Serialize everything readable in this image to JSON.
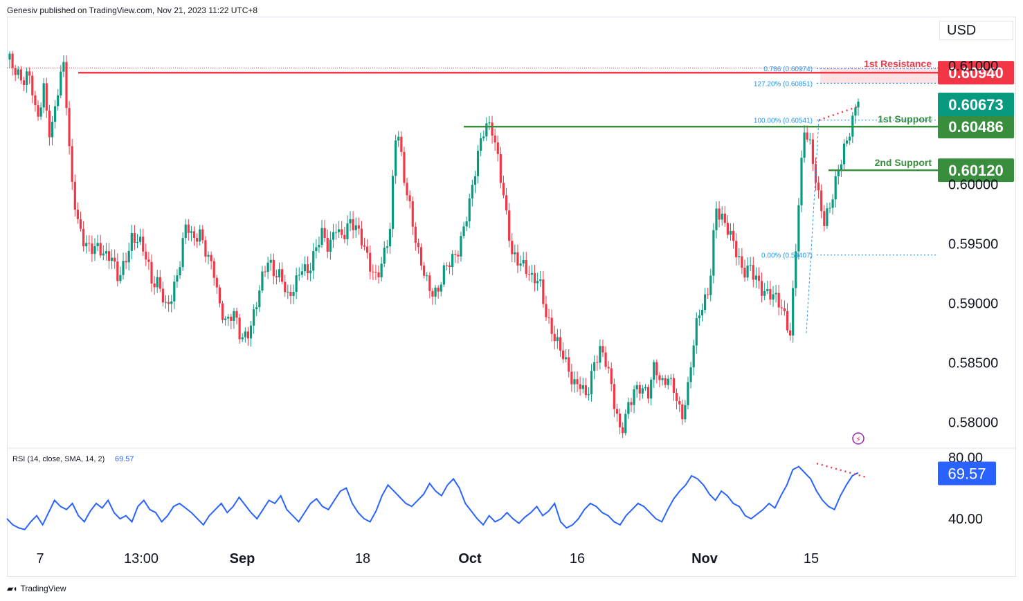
{
  "header": {
    "publisher": "Genesiv published on TradingView.com, Nov 21, 2023 11:22 UTC+8"
  },
  "footer": {
    "logo_text": "TradingView"
  },
  "currency": "USD",
  "colors": {
    "up": "#089981",
    "down": "#f23645",
    "resistance": "#f23645",
    "support": "#388e3c",
    "rsi": "#2962ff",
    "fib": "#2196f3"
  },
  "chart_data": [
    {
      "type": "candlestick",
      "price_axis": {
        "ticks": [
          "0.61000",
          "0.60000",
          "0.59500",
          "0.59000",
          "0.58500",
          "0.58000"
        ],
        "range": [
          0.578,
          0.614
        ]
      },
      "time_axis": {
        "ticks": [
          {
            "label": "7",
            "bold": false
          },
          {
            "label": "13:00",
            "bold": false
          },
          {
            "label": "Sep",
            "bold": true
          },
          {
            "label": "18",
            "bold": false
          },
          {
            "label": "Oct",
            "bold": true
          },
          {
            "label": "16",
            "bold": false
          },
          {
            "label": "Nov",
            "bold": true
          },
          {
            "label": "15",
            "bold": false
          }
        ]
      },
      "close_path": [
        0.6105,
        0.6085,
        0.6078,
        0.6092,
        0.606,
        0.609,
        0.604,
        0.607,
        0.6094,
        0.6005,
        0.5975,
        0.596,
        0.595,
        0.5942,
        0.593,
        0.5935,
        0.5925,
        0.5945,
        0.596,
        0.595,
        0.5932,
        0.591,
        0.592,
        0.5905,
        0.5915,
        0.593,
        0.596,
        0.5945,
        0.596,
        0.595,
        0.5938,
        0.5895,
        0.5875,
        0.5885,
        0.587,
        0.588,
        0.59,
        0.592,
        0.593,
        0.5915,
        0.592,
        0.591,
        0.5925,
        0.5935,
        0.592,
        0.5935,
        0.5955,
        0.595,
        0.5975,
        0.596,
        0.5965,
        0.5955,
        0.5945,
        0.5935,
        0.593,
        0.5945,
        0.596,
        0.6045,
        0.6,
        0.598,
        0.5955,
        0.5935,
        0.591,
        0.59,
        0.592,
        0.5935,
        0.595,
        0.5975,
        0.5995,
        0.602,
        0.604,
        0.6045,
        0.6025,
        0.599,
        0.5945,
        0.593,
        0.592,
        0.5915,
        0.5925,
        0.59,
        0.588,
        0.586,
        0.584,
        0.5825,
        0.5835,
        0.583,
        0.5855,
        0.586,
        0.584,
        0.581,
        0.579,
        0.582,
        0.5835,
        0.583,
        0.5815,
        0.584,
        0.583,
        0.5845,
        0.5835,
        0.5805,
        0.5825,
        0.587,
        0.5895,
        0.5915,
        0.599,
        0.5975,
        0.5955,
        0.5935,
        0.592,
        0.5935,
        0.593,
        0.5915,
        0.5905,
        0.5895,
        0.5885,
        0.5875,
        0.5975,
        0.6055,
        0.603,
        0.5985,
        0.596,
        0.5985,
        0.602,
        0.604,
        0.605,
        0.6067
      ],
      "levels": [
        {
          "name": "1st Resistance",
          "label": "1st Resistance",
          "value": "0.60940",
          "kind": "resistance"
        },
        {
          "name": "1st Support",
          "label": "1st Support",
          "value": "0.60486",
          "kind": "support"
        },
        {
          "name": "2nd Support",
          "label": "2nd Support",
          "value": "0.60120",
          "kind": "support"
        }
      ],
      "last_price": "0.60673",
      "fibonacci": [
        {
          "label": "0.786 (0.60974)"
        },
        {
          "label": "127.20% (0.60851)"
        },
        {
          "label": "100.00% (0.60541)"
        },
        {
          "label": "0.00% (0.59407)"
        }
      ]
    },
    {
      "type": "line",
      "title": "RSI (14, close, SMA, 14, 2)",
      "current_value": "69.57",
      "ticks": [
        "80.00",
        "40.00"
      ],
      "range": [
        22,
        86
      ],
      "series": [
        {
          "values": [
            40,
            36,
            34,
            33,
            38,
            42,
            36,
            44,
            52,
            48,
            46,
            50,
            42,
            38,
            45,
            50,
            47,
            52,
            44,
            40,
            42,
            38,
            48,
            52,
            46,
            44,
            38,
            42,
            48,
            50,
            47,
            44,
            40,
            36,
            42,
            46,
            50,
            44,
            48,
            54,
            49,
            44,
            40,
            46,
            52,
            50,
            55,
            46,
            42,
            38,
            44,
            50,
            53,
            48,
            46,
            52,
            58,
            60,
            50,
            44,
            40,
            38,
            45,
            55,
            62,
            58,
            54,
            50,
            48,
            52,
            56,
            63,
            58,
            55,
            62,
            66,
            60,
            50,
            45,
            40,
            36,
            42,
            38,
            40,
            44,
            40,
            37,
            41,
            44,
            48,
            42,
            45,
            50,
            38,
            34,
            36,
            40,
            46,
            50,
            48,
            44,
            42,
            38,
            36,
            42,
            46,
            50,
            48,
            44,
            40,
            38,
            46,
            53,
            58,
            62,
            68,
            66,
            62,
            56,
            52,
            58,
            55,
            50,
            48,
            42,
            40,
            43,
            46,
            50,
            47,
            55,
            62,
            72,
            74,
            70,
            66,
            58,
            52,
            48,
            46,
            55,
            62,
            68,
            70
          ]
        }
      ],
      "divergence": true
    }
  ]
}
